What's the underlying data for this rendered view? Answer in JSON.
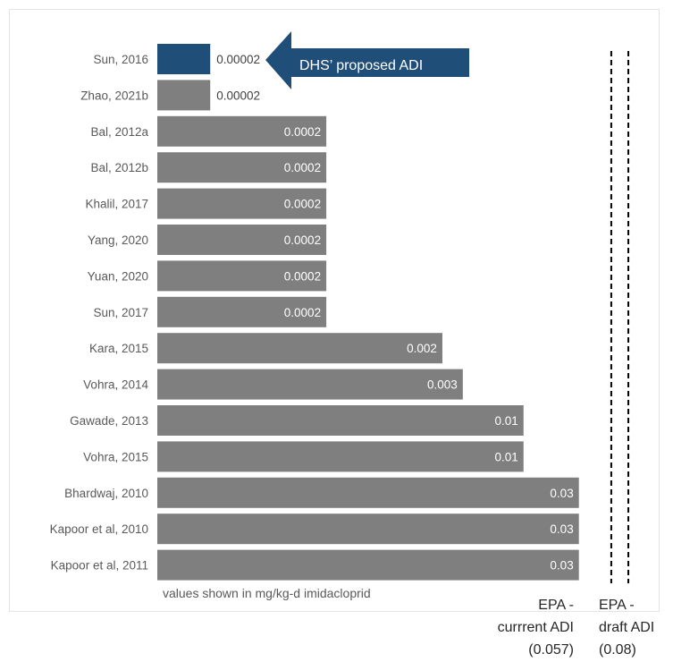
{
  "chart_data": {
    "type": "bar",
    "orientation": "horizontal",
    "categories": [
      "Sun, 2016",
      "Zhao, 2021b",
      "Bal, 2012a",
      "Bal, 2012b",
      "Khalil, 2017",
      "Yang, 2020",
      "Yuan, 2020",
      "Sun, 2017",
      "Kara, 2015",
      "Vohra, 2014",
      "Gawade, 2013",
      "Vohra, 2015",
      "Bhardwaj, 2010",
      "Kapoor et al, 2010",
      "Kapoor et al, 2011"
    ],
    "values": [
      2e-05,
      2e-05,
      0.0002,
      0.0002,
      0.0002,
      0.0002,
      0.0002,
      0.0002,
      0.002,
      0.003,
      0.01,
      0.01,
      0.03,
      0.03,
      0.03
    ],
    "value_labels": [
      "0.00002",
      "0.00002",
      "0.0002",
      "0.0002",
      "0.0002",
      "0.0002",
      "0.0002",
      "0.0002",
      "0.002",
      "0.003",
      "0.01",
      "0.01",
      "0.03",
      "0.03",
      "0.03"
    ],
    "highlight_index": 0,
    "xscale": "log",
    "xlim": [
      7e-06,
      0.11
    ],
    "colors": {
      "bar": "#7f7f7f",
      "highlight": "#1f4e79",
      "arrow": "#1f4e79"
    },
    "grid": false,
    "reference_lines": [
      {
        "label": "EPA - currrent ADI (0.057)",
        "value": 0.057,
        "style": "dashed"
      },
      {
        "label": "EPA - draft ADI (0.08)",
        "value": 0.08,
        "style": "dashed"
      }
    ]
  },
  "annotation": {
    "callout": "DHS’ proposed ADI"
  },
  "note": "values shown in mg/kg-d imidacloprid",
  "ref_labels": {
    "current": [
      "EPA -",
      "currrent ADI",
      "(0.057)"
    ],
    "draft": [
      "EPA -",
      "draft ADI",
      "(0.08)"
    ]
  }
}
